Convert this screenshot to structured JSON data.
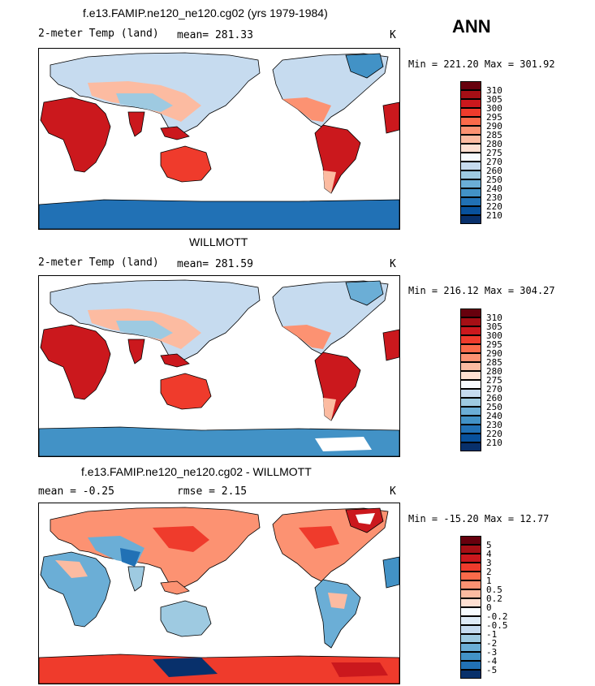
{
  "season": "ANN",
  "panels": [
    {
      "title": "f.e13.FAMIP.ne120_ne120.cg02 (yrs 1979-1984)",
      "left_label": "2-meter Temp (land)",
      "mean_label": "mean= 281.33",
      "units": "K",
      "minmax": "Min = 221.20 Max = 301.92",
      "colorbar_labels": [
        "310",
        "305",
        "300",
        "295",
        "290",
        "285",
        "280",
        "275",
        "270",
        "260",
        "250",
        "240",
        "230",
        "220",
        "210"
      ]
    },
    {
      "title": "WILLMOTT",
      "left_label": "2-meter Temp (land)",
      "mean_label": "mean= 281.59",
      "units": "K",
      "minmax": "Min = 216.12 Max = 304.27",
      "colorbar_labels": [
        "310",
        "305",
        "300",
        "295",
        "290",
        "285",
        "280",
        "275",
        "270",
        "260",
        "250",
        "240",
        "230",
        "220",
        "210"
      ]
    },
    {
      "title": "f.e13.FAMIP.ne120_ne120.cg02 - WILLMOTT",
      "left_label": "mean =  -0.25",
      "mean_label": "rmse =   2.15",
      "units": "K",
      "minmax": "Min = -15.20 Max =  12.77",
      "colorbar_labels": [
        "5",
        "4",
        "3",
        "2",
        "1",
        "0.5",
        "0.2",
        "0",
        "-0.2",
        "-0.5",
        "-1",
        "-2",
        "-3",
        "-4",
        "-5"
      ]
    }
  ],
  "colors": {
    "abs_scale": [
      "#67000d",
      "#a50f15",
      "#cb181d",
      "#ef3b2c",
      "#fb6a4a",
      "#fc9272",
      "#fcbba1",
      "#fee0d2",
      "#f7fbff",
      "#c6dbef",
      "#9ecae1",
      "#6baed6",
      "#4292c6",
      "#2171b5",
      "#08519c",
      "#08306b"
    ],
    "diff_scale": [
      "#67000d",
      "#a50f15",
      "#cb181d",
      "#ef3b2c",
      "#fb6a4a",
      "#fc9272",
      "#fcbba1",
      "#fee0d2",
      "#f7fbff",
      "#deebf7",
      "#c6dbef",
      "#9ecae1",
      "#6baed6",
      "#4292c6",
      "#2171b5",
      "#08306b"
    ]
  }
}
